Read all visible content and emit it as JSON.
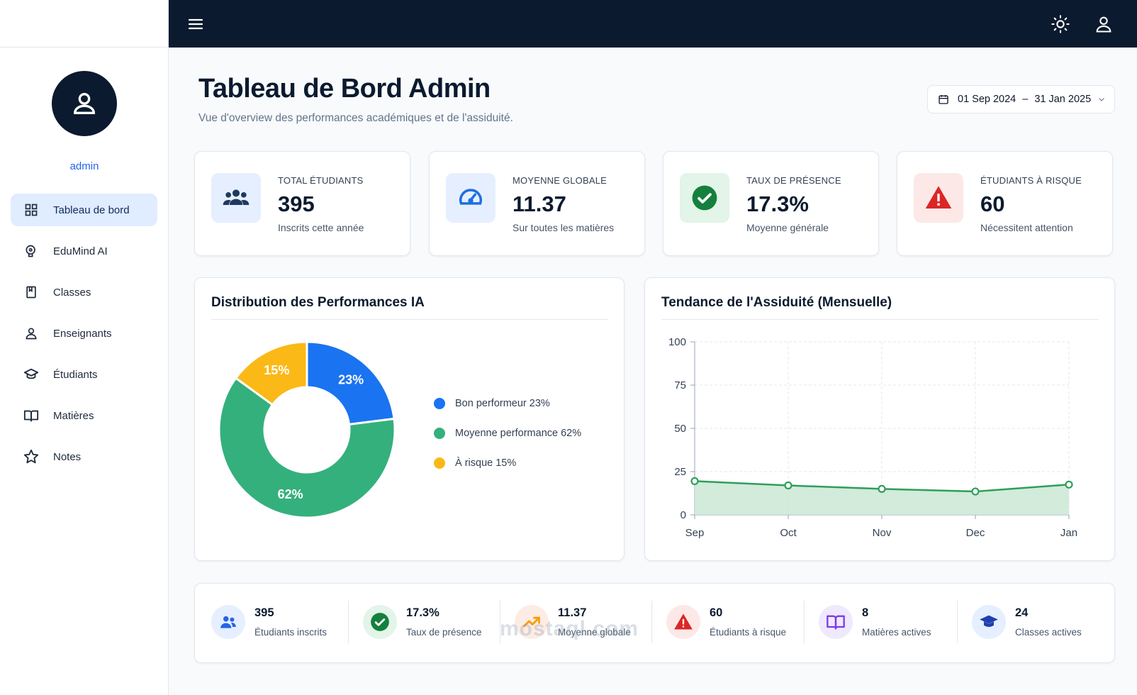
{
  "sidebar": {
    "username": "admin",
    "items": [
      {
        "label": "Tableau de bord",
        "icon": "dashboard-icon",
        "active": true
      },
      {
        "label": "EduMind AI",
        "icon": "brain-icon",
        "active": false
      },
      {
        "label": "Classes",
        "icon": "bookmark-icon",
        "active": false
      },
      {
        "label": "Enseignants",
        "icon": "user-icon",
        "active": false
      },
      {
        "label": "Étudiants",
        "icon": "graduation-cap-icon",
        "active": false
      },
      {
        "label": "Matières",
        "icon": "open-book-icon",
        "active": false
      },
      {
        "label": "Notes",
        "icon": "star-icon",
        "active": false
      }
    ]
  },
  "header": {
    "title": "Tableau de Bord Admin",
    "subtitle": "Vue d'overview des performances académiques et de l'assiduité.",
    "date_from": "01 Sep 2024",
    "date_sep": "–",
    "date_to": "31 Jan 2025"
  },
  "stats": [
    {
      "label": "TOTAL ÉTUDIANTS",
      "value": "395",
      "sub": "Inscrits cette année",
      "icon": "users-icon",
      "color": "#1e3a5f",
      "bg": "#e6efff"
    },
    {
      "label": "MOYENNE GLOBALE",
      "value": "11.37",
      "sub": "Sur toutes les matières",
      "icon": "gauge-icon",
      "color": "#1d6fe0",
      "bg": "#e6efff"
    },
    {
      "label": "TAUX DE PRÉSENCE",
      "value": "17.3%",
      "sub": "Moyenne générale",
      "icon": "check-circle-icon",
      "color": "#15803d",
      "bg": "#e3f4e8"
    },
    {
      "label": "ÉTUDIANTS À RISQUE",
      "value": "60",
      "sub": "Nécessitent attention",
      "icon": "warning-icon",
      "color": "#dc2626",
      "bg": "#fde8e8"
    }
  ],
  "performance_panel": {
    "title": "Distribution des Performances IA",
    "legend": [
      "Bon performeur 23%",
      "Moyenne performance 62%",
      "À risque 15%"
    ]
  },
  "attendance_panel": {
    "title": "Tendance de l'Assiduité (Mensuelle)"
  },
  "chart_data": [
    {
      "type": "pie",
      "title": "Distribution des Performances IA",
      "categories": [
        "Bon performeur",
        "Moyenne performance",
        "À risque"
      ],
      "values": [
        23,
        62,
        15
      ],
      "labels": [
        "23%",
        "62%",
        "15%"
      ],
      "colors": [
        "#1a73f0",
        "#34b07c",
        "#fbb917"
      ],
      "donut": true,
      "legend": "right"
    },
    {
      "type": "area",
      "title": "Tendance de l'Assiduité (Mensuelle)",
      "categories": [
        "Sep",
        "Oct",
        "Nov",
        "Dec",
        "Jan"
      ],
      "series": [
        {
          "values": [
            19.5,
            17,
            15,
            13.5,
            17.5
          ]
        }
      ],
      "ylim": [
        0,
        100
      ],
      "yticks": [
        0,
        25,
        50,
        75,
        100
      ],
      "grid": true,
      "line_color": "#2e9e5b",
      "fill_color": "#cde9d6"
    }
  ],
  "summary": [
    {
      "value": "395",
      "label": "Étudiants inscrits",
      "icon": "users-icon",
      "color": "#2563eb",
      "bg": "#e6efff"
    },
    {
      "value": "17.3%",
      "label": "Taux de présence",
      "icon": "check-circle-icon",
      "color": "#15803d",
      "bg": "#e3f4e8"
    },
    {
      "value": "11.37",
      "label": "Moyenne globale",
      "icon": "trend-up-icon",
      "color": "#f59e0b",
      "bg": "#fdece4"
    },
    {
      "value": "60",
      "label": "Étudiants à risque",
      "icon": "warning-icon",
      "color": "#dc2626",
      "bg": "#fde8e8"
    },
    {
      "value": "8",
      "label": "Matières actives",
      "icon": "open-book-icon",
      "color": "#7c3aed",
      "bg": "#efe9fd"
    },
    {
      "value": "24",
      "label": "Classes actives",
      "icon": "graduation-cap-icon",
      "color": "#1e40af",
      "bg": "#e6efff"
    }
  ],
  "watermark": "mostaql.com"
}
